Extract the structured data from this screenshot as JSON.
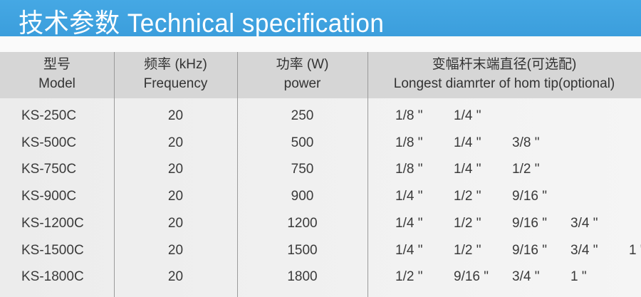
{
  "title": "技术参数  Technical specification",
  "header": {
    "model": {
      "cn": "型号",
      "en": "Model"
    },
    "frequency": {
      "cn": "频率 (kHz)",
      "en": "Frequency"
    },
    "power": {
      "cn": "功率 (W)",
      "en": "power"
    },
    "diameter": {
      "cn": "变幅杆末端直径(可选配)",
      "en": "Longest diamrter of hom tip(optional)"
    }
  },
  "rows": [
    {
      "model": "KS-250C",
      "frequency": "20",
      "power": "250",
      "diameters": [
        "1/8 \"",
        "1/4 \""
      ]
    },
    {
      "model": "KS-500C",
      "frequency": "20",
      "power": "500",
      "diameters": [
        "1/8 \"",
        "1/4 \"",
        "3/8 \""
      ]
    },
    {
      "model": "KS-750C",
      "frequency": "20",
      "power": "750",
      "diameters": [
        "1/8 \"",
        "1/4 \"",
        "1/2 \""
      ]
    },
    {
      "model": "KS-900C",
      "frequency": "20",
      "power": "900",
      "diameters": [
        "1/4 \"",
        "1/2 \"",
        "9/16 \""
      ]
    },
    {
      "model": "KS-1200C",
      "frequency": "20",
      "power": "1200",
      "diameters": [
        "1/4 \"",
        "1/2 \"",
        "9/16 \"",
        "3/4 \""
      ]
    },
    {
      "model": "KS-1500C",
      "frequency": "20",
      "power": "1500",
      "diameters": [
        "1/4 \"",
        "1/2 \"",
        "9/16 \"",
        "3/4 \"",
        "1 \""
      ]
    },
    {
      "model": "KS-1800C",
      "frequency": "20",
      "power": "1800",
      "diameters": [
        "1/2 \"",
        "9/16 \"",
        "3/4 \"",
        "1 \""
      ]
    }
  ]
}
